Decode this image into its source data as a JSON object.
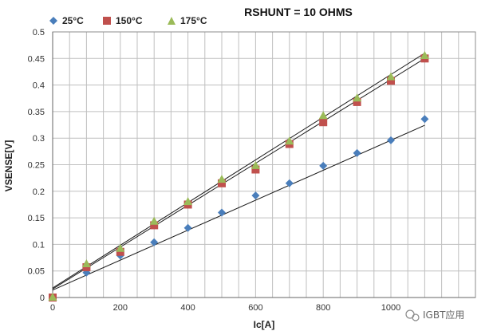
{
  "chart_data": {
    "type": "scatter",
    "title": "RSHUNT = 10 OHMS",
    "xlabel": "Ic[A]",
    "ylabel": "VSENSE[V]",
    "xlim": [
      0,
      1250
    ],
    "ylim": [
      0,
      0.5
    ],
    "x_ticks": [
      "0",
      "200",
      "400",
      "600",
      "800",
      "1000"
    ],
    "y_ticks": [
      "0",
      "0.05",
      "0.1",
      "0.15",
      "0.2",
      "0.25",
      "0.3",
      "0.35",
      "0.4",
      "0.45",
      "0.5"
    ],
    "grid": true,
    "legend_position": "top-left",
    "series": [
      {
        "name": "25°C",
        "marker": "diamond",
        "color": "#4a7ebb",
        "x": [
          0,
          100,
          200,
          300,
          400,
          500,
          600,
          700,
          800,
          900,
          1000,
          1100
        ],
        "y": [
          0,
          0.047,
          0.079,
          0.104,
          0.131,
          0.16,
          0.192,
          0.215,
          0.248,
          0.272,
          0.296,
          0.336
        ],
        "trendline": {
          "slope": 0.000282,
          "intercept": 0.014
        }
      },
      {
        "name": "150°C",
        "marker": "square",
        "color": "#c0504d",
        "x": [
          0,
          100,
          200,
          300,
          400,
          500,
          600,
          700,
          800,
          900,
          1000,
          1100
        ],
        "y": [
          0,
          0.057,
          0.086,
          0.136,
          0.175,
          0.215,
          0.241,
          0.289,
          0.33,
          0.368,
          0.408,
          0.45
        ],
        "trendline": {
          "slope": 0.0003945,
          "intercept": 0.016
        }
      },
      {
        "name": "175°C",
        "marker": "triangle",
        "color": "#9bbb59",
        "x": [
          0,
          100,
          200,
          300,
          400,
          500,
          600,
          700,
          800,
          900,
          1000,
          1100
        ],
        "y": [
          0,
          0.063,
          0.092,
          0.143,
          0.18,
          0.222,
          0.248,
          0.294,
          0.342,
          0.375,
          0.415,
          0.455
        ],
        "trendline": {
          "slope": 0.0004018,
          "intercept": 0.018
        }
      }
    ]
  },
  "watermark": {
    "icon": "wechat-logo-icon",
    "text": "IGBT应用"
  }
}
